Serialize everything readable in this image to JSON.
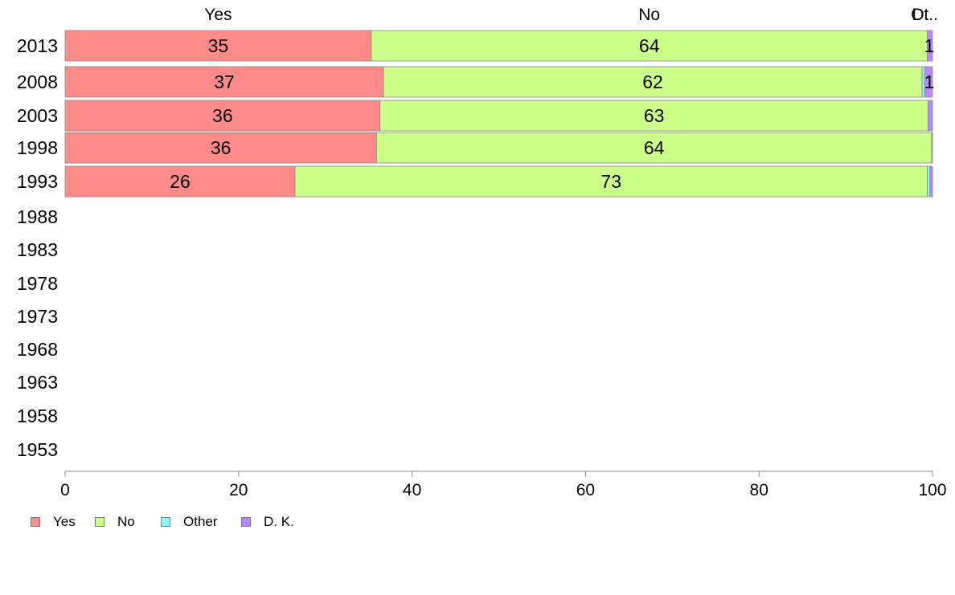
{
  "chart_data": {
    "type": "bar",
    "orientation": "horizontal",
    "stacked": true,
    "categories": [
      "2013",
      "2008",
      "2003",
      "1998",
      "1993",
      "1988",
      "1983",
      "1978",
      "1973",
      "1968",
      "1963",
      "1958",
      "1953"
    ],
    "series": [
      {
        "name": "Yes",
        "color": "#ff8a8a",
        "values": [
          35.3,
          36.7,
          36.3,
          35.9,
          26.5,
          null,
          null,
          null,
          null,
          null,
          null,
          null,
          null
        ]
      },
      {
        "name": "No",
        "color": "#ccff88",
        "values": [
          64.1,
          62.1,
          63.2,
          64.0,
          72.9,
          null,
          null,
          null,
          null,
          null,
          null,
          null,
          null
        ]
      },
      {
        "name": "Other",
        "color": "#88ffff",
        "values": [
          0.0,
          0.3,
          0.0,
          0.0,
          0.3,
          null,
          null,
          null,
          null,
          null,
          null,
          null,
          null
        ]
      },
      {
        "name": "D. K.",
        "color": "#bb88ff",
        "values": [
          0.6,
          0.9,
          0.5,
          0.1,
          0.3,
          null,
          null,
          null,
          null,
          null,
          null,
          null,
          null
        ]
      }
    ],
    "data_labels": [
      [
        "35",
        "64",
        "",
        "1"
      ],
      [
        "37",
        "62",
        "",
        "1"
      ],
      [
        "36",
        "63",
        "",
        ""
      ],
      [
        "36",
        "64",
        "",
        ""
      ],
      [
        "26",
        "73",
        "",
        ""
      ],
      [],
      [],
      [],
      [],
      [],
      [],
      [],
      []
    ],
    "top_labels": [
      "Yes",
      "No",
      "Ot..",
      "D."
    ],
    "x_ticks": [
      0,
      20,
      40,
      60,
      80,
      100
    ],
    "xlim": [
      0,
      100
    ],
    "title": "",
    "xlabel": "",
    "ylabel": "",
    "grid": false,
    "legend_position": "bottom-left"
  }
}
